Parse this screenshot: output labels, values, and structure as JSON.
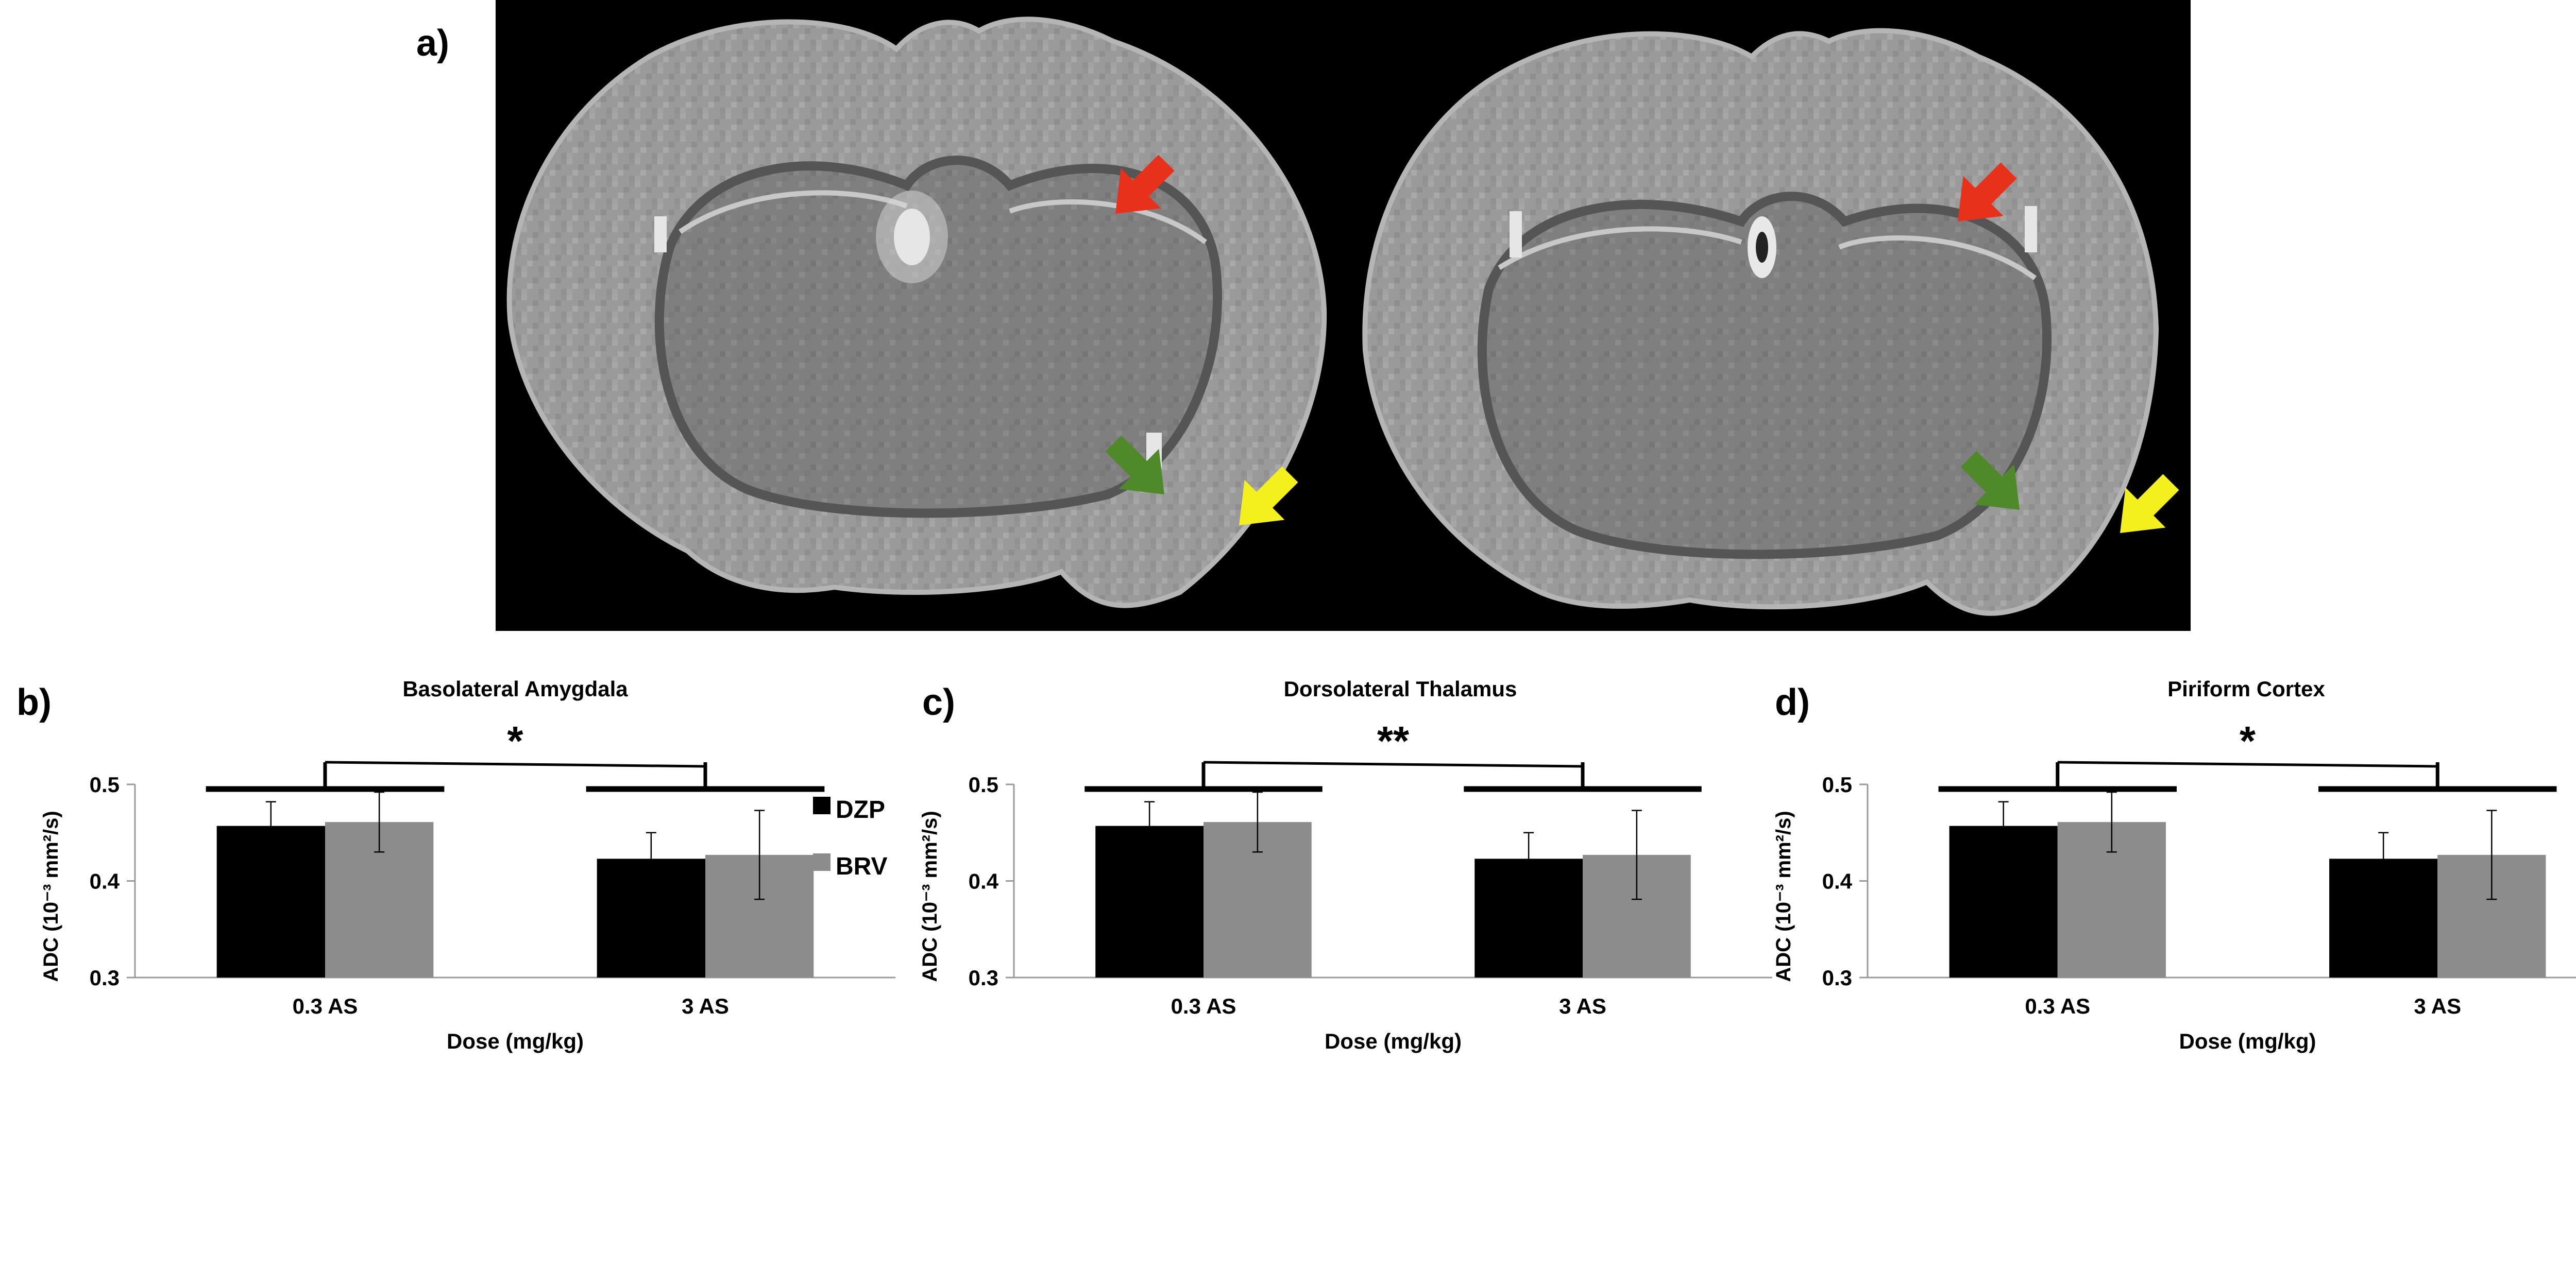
{
  "panel_a": {
    "label": "a)",
    "arrow_colors": {
      "red": "#E8311A",
      "green": "#4E8A2A",
      "yellow": "#F4F01E"
    },
    "background": "#000000"
  },
  "legend": [
    {
      "name": "DZP",
      "color": "#000000"
    },
    {
      "name": "BRV",
      "color": "#8C8C8C"
    }
  ],
  "chart_data": [
    {
      "type": "bar",
      "panel_label": "b)",
      "title": "Basolateral Amygdala",
      "xlabel": "Dose (mg/kg)",
      "ylabel": "ADC (10⁻³ mm²/s)",
      "ylim": [
        0.3,
        0.5
      ],
      "yticks": [
        "0.3",
        "0.4",
        "0.5"
      ],
      "categories": [
        "0.3 AS",
        "3 AS"
      ],
      "series": [
        {
          "name": "DZP",
          "values": [
            0.457,
            0.423
          ],
          "errors": [
            0.025,
            0.027
          ]
        },
        {
          "name": "BRV",
          "values": [
            0.461,
            0.427
          ],
          "errors": [
            0.031,
            0.046
          ]
        }
      ],
      "significance": "*"
    },
    {
      "type": "bar",
      "panel_label": "c)",
      "title": "Dorsolateral Thalamus",
      "xlabel": "Dose (mg/kg)",
      "ylabel": "ADC (10⁻³ mm²/s)",
      "ylim": [
        0.3,
        0.5
      ],
      "yticks": [
        "0.3",
        "0.4",
        "0.5"
      ],
      "categories": [
        "0.3 AS",
        "3 AS"
      ],
      "series": [
        {
          "name": "DZP",
          "values": [
            0.457,
            0.423
          ],
          "errors": [
            0.025,
            0.027
          ]
        },
        {
          "name": "BRV",
          "values": [
            0.461,
            0.427
          ],
          "errors": [
            0.031,
            0.046
          ]
        }
      ],
      "significance": "**"
    },
    {
      "type": "bar",
      "panel_label": "d)",
      "title": "Piriform Cortex",
      "xlabel": "Dose (mg/kg)",
      "ylabel": "ADC (10⁻³ mm²/s)",
      "ylim": [
        0.3,
        0.5
      ],
      "yticks": [
        "0.3",
        "0.4",
        "0.5"
      ],
      "categories": [
        "0.3 AS",
        "3 AS"
      ],
      "series": [
        {
          "name": "DZP",
          "values": [
            0.457,
            0.423
          ],
          "errors": [
            0.025,
            0.027
          ]
        },
        {
          "name": "BRV",
          "values": [
            0.461,
            0.427
          ],
          "errors": [
            0.031,
            0.046
          ]
        }
      ],
      "significance": "*"
    }
  ]
}
